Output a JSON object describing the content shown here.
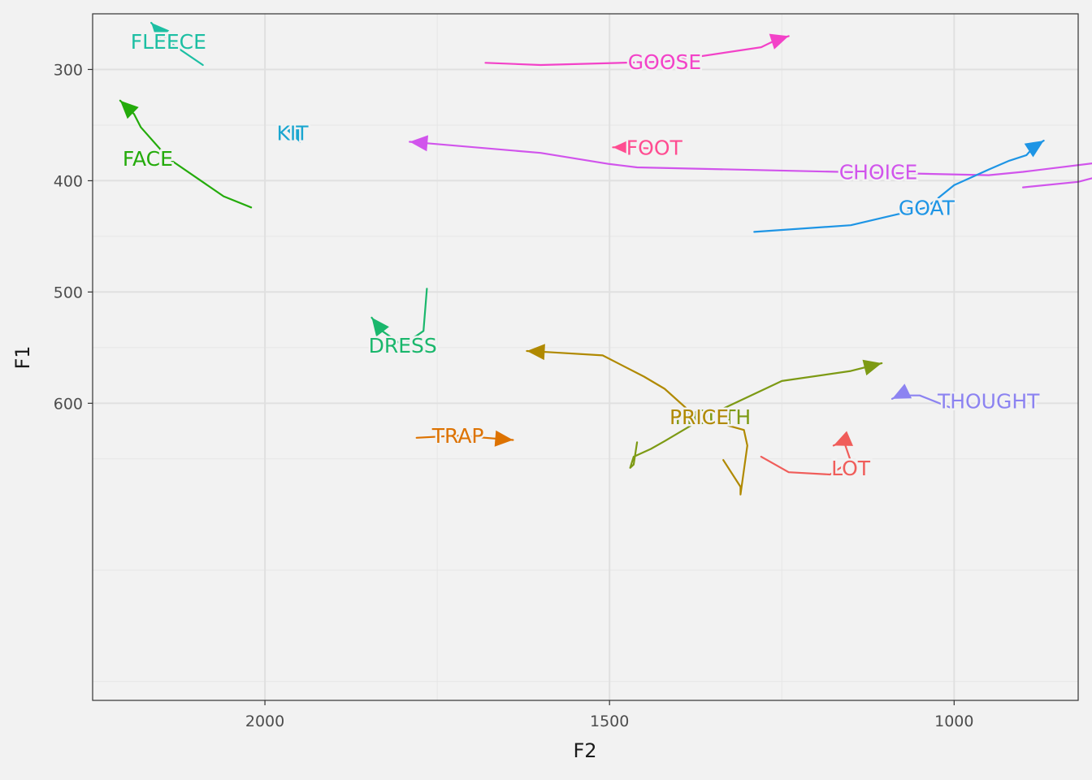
{
  "chart_data": {
    "type": "line",
    "xlabel": "F2",
    "ylabel": "F1",
    "xlim": [
      2250,
      820
    ],
    "ylim": [
      867,
      250
    ],
    "x_reversed": true,
    "y_reversed": true,
    "grid": true,
    "legend": "none",
    "x_ticks": [
      2000,
      1500,
      1000
    ],
    "y_ticks": [
      300,
      400,
      500,
      600
    ],
    "series": [
      {
        "name": "FLEECE",
        "color": "#1cbfa3",
        "label_pos": [
          2140,
          275
        ],
        "points": [
          [
            2090,
            296
          ],
          [
            2140,
            275
          ],
          [
            2165,
            258
          ]
        ]
      },
      {
        "name": "GOOSE",
        "color": "#f342c8",
        "label_pos": [
          1420,
          293
        ],
        "points": [
          [
            1680,
            294
          ],
          [
            1600,
            296
          ],
          [
            1420,
            293
          ],
          [
            1280,
            280
          ],
          [
            1260,
            274
          ],
          [
            1240,
            270
          ]
        ]
      },
      {
        "name": "FACE",
        "color": "#24ab0b",
        "label_pos": [
          2170,
          380
        ],
        "points": [
          [
            2020,
            424
          ],
          [
            2060,
            414
          ],
          [
            2140,
            380
          ],
          [
            2180,
            352
          ],
          [
            2190,
            340
          ],
          [
            2210,
            328
          ]
        ]
      },
      {
        "name": "KIT",
        "color": "#1aa6d0",
        "label_pos": [
          1960,
          357
        ],
        "points": [
          [
            1950,
            358
          ],
          [
            1960,
            356
          ],
          [
            1970,
            354
          ]
        ]
      },
      {
        "name": "FOOT",
        "color": "#ff4c91",
        "label_pos": [
          1435,
          370
        ],
        "points": [
          [
            1440,
            371
          ],
          [
            1480,
            370
          ],
          [
            1495,
            370
          ]
        ]
      },
      {
        "name": "CHOICE",
        "color": "#d154ec",
        "label_pos": [
          1110,
          392
        ],
        "points": [
          [
            900,
            406
          ],
          [
            820,
            401
          ],
          [
            770,
            393
          ],
          [
            760,
            385
          ],
          [
            780,
            383
          ],
          [
            900,
            392
          ],
          [
            950,
            395
          ],
          [
            1460,
            388
          ],
          [
            1500,
            385
          ],
          [
            1600,
            375
          ],
          [
            1790,
            365
          ]
        ]
      },
      {
        "name": "GOAT",
        "color": "#1e95e5",
        "label_pos": [
          1040,
          424
        ],
        "points": [
          [
            1290,
            446
          ],
          [
            1150,
            440
          ],
          [
            1040,
            424
          ],
          [
            1000,
            404
          ],
          [
            950,
            390
          ],
          [
            920,
            382
          ],
          [
            895,
            377
          ],
          [
            885,
            370
          ],
          [
            870,
            364
          ]
        ]
      },
      {
        "name": "DRESS",
        "color": "#1ab76c",
        "label_pos": [
          1800,
          548
        ],
        "points": [
          [
            1765,
            497
          ],
          [
            1770,
            535
          ],
          [
            1800,
            548
          ],
          [
            1830,
            535
          ],
          [
            1845,
            523
          ]
        ]
      },
      {
        "name": "MOUTH",
        "color": "#7d9a14",
        "label_pos": [
          1350,
          612
        ],
        "points": [
          [
            1460,
            635
          ],
          [
            1465,
            655
          ],
          [
            1470,
            658
          ],
          [
            1465,
            648
          ],
          [
            1440,
            641
          ],
          [
            1420,
            634
          ],
          [
            1360,
            612
          ],
          [
            1250,
            580
          ],
          [
            1150,
            571
          ],
          [
            1105,
            564
          ]
        ]
      },
      {
        "name": "PRICE",
        "color": "#b08900",
        "label_pos": [
          1370,
          612
        ],
        "points": [
          [
            1335,
            651
          ],
          [
            1310,
            675
          ],
          [
            1310,
            682
          ],
          [
            1300,
            638
          ],
          [
            1305,
            624
          ],
          [
            1375,
            612
          ],
          [
            1420,
            587
          ],
          [
            1450,
            576
          ],
          [
            1510,
            557
          ],
          [
            1590,
            554
          ],
          [
            1620,
            553
          ]
        ]
      },
      {
        "name": "LOT",
        "color": "#f05d5a",
        "label_pos": [
          1150,
          658
        ],
        "points": [
          [
            1280,
            648
          ],
          [
            1240,
            662
          ],
          [
            1180,
            664
          ],
          [
            1150,
            652
          ],
          [
            1160,
            634
          ],
          [
            1175,
            638
          ]
        ]
      },
      {
        "name": "TRAP",
        "color": "#dd7200",
        "label_pos": [
          1720,
          629
        ],
        "points": [
          [
            1780,
            631
          ],
          [
            1720,
            629
          ],
          [
            1660,
            632
          ],
          [
            1640,
            633
          ]
        ]
      },
      {
        "name": "THOUGHT",
        "color": "#8c83f1",
        "label_pos": [
          950,
          598
        ],
        "points": [
          [
            1005,
            604
          ],
          [
            1050,
            593
          ],
          [
            1080,
            593
          ],
          [
            1090,
            596
          ]
        ]
      }
    ]
  }
}
